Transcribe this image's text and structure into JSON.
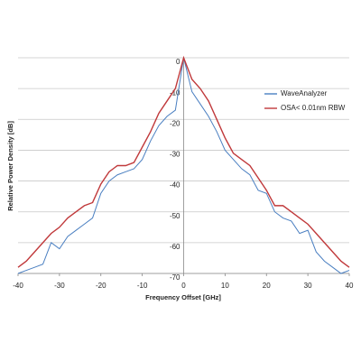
{
  "chart_data": {
    "type": "line",
    "xlabel": "Frequency Offset [GHz]",
    "ylabel": "Relative Power Density [dB]",
    "x": [
      -40,
      -38,
      -36,
      -34,
      -32,
      -30,
      -28,
      -26,
      -24,
      -22,
      -20,
      -18,
      -16,
      -14,
      -12,
      -10,
      -8,
      -6,
      -4,
      -2,
      0,
      2,
      4,
      6,
      8,
      10,
      12,
      14,
      16,
      18,
      20,
      22,
      24,
      26,
      28,
      30,
      32,
      34,
      36,
      38,
      40
    ],
    "series": [
      {
        "name": "WaveAnalyzer",
        "color": "#4a7fc1",
        "values": [
          -70,
          -69,
          -68,
          -67,
          -60,
          -62,
          -58,
          -56,
          -54,
          -52,
          -44,
          -40,
          -38,
          -37,
          -36,
          -33,
          -27,
          -22,
          -19,
          -17,
          0,
          -11,
          -15,
          -19,
          -24,
          -30,
          -33,
          -36,
          -38,
          -43,
          -44,
          -50,
          -52,
          -53,
          -57,
          -56,
          -63,
          -66,
          -68,
          -70,
          -69
        ]
      },
      {
        "name": "OSA< 0.01nm RBW",
        "color": "#c0393b",
        "values": [
          -68,
          -66,
          -63,
          -60,
          -57,
          -55,
          -52,
          -50,
          -48,
          -47,
          -41,
          -37,
          -35,
          -35,
          -34,
          -29,
          -24,
          -18,
          -14,
          -10,
          0,
          -7,
          -10,
          -14,
          -20,
          -26,
          -31,
          -33,
          -35,
          -39,
          -43,
          -48,
          -48,
          -50,
          -52,
          -54,
          -57,
          -60,
          -63,
          -66,
          -68
        ]
      }
    ],
    "xlim": [
      -40,
      40
    ],
    "xticks": [
      -40,
      -30,
      -20,
      -10,
      0,
      10,
      20,
      30,
      40
    ],
    "ylim": [
      -70,
      0
    ],
    "yticks": [
      0,
      -10,
      -20,
      -30,
      -40,
      -50,
      -60,
      -70
    ],
    "grid": true,
    "legend": "upper right"
  }
}
